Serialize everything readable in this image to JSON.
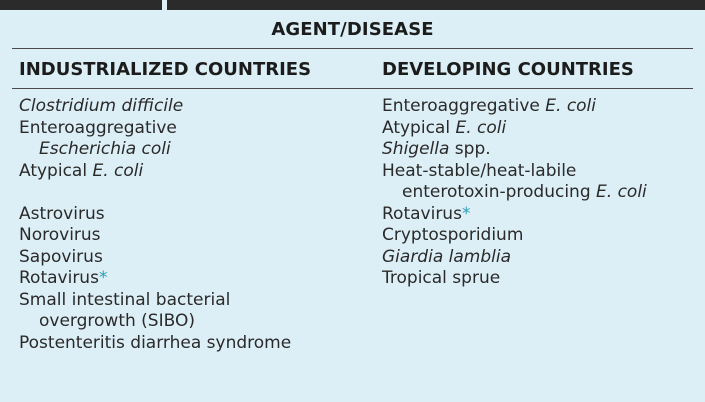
{
  "header": {
    "title": "AGENT/DISEASE"
  },
  "columns": {
    "industrialized": {
      "heading": "INDUSTRIALIZED COUNTRIES",
      "items": [
        {
          "id": "clostridium-difficile",
          "parts": [
            "Clostridium difficile"
          ]
        },
        {
          "id": "enteroaggregative-1",
          "parts": [
            "Enteroaggregative"
          ]
        },
        {
          "id": "enteroaggregative-2",
          "parts": [
            "Escherichia coli"
          ]
        },
        {
          "id": "atypical-e-coli",
          "parts": [
            "Atypical ",
            "E. coli"
          ]
        },
        {
          "id": "astrovirus",
          "parts": [
            "Astrovirus"
          ]
        },
        {
          "id": "norovirus",
          "parts": [
            "Norovirus"
          ]
        },
        {
          "id": "sapovirus",
          "parts": [
            "Sapovirus"
          ]
        },
        {
          "id": "rotavirus",
          "parts": [
            "Rotavirus",
            "*"
          ]
        },
        {
          "id": "sibo-1",
          "parts": [
            "Small intestinal bacterial"
          ]
        },
        {
          "id": "sibo-2",
          "parts": [
            "overgrowth (SIBO)"
          ]
        },
        {
          "id": "postenteritis",
          "parts": [
            "Postenteritis diarrhea syndrome"
          ]
        }
      ]
    },
    "developing": {
      "heading": "DEVELOPING COUNTRIES",
      "items": [
        {
          "id": "enteroaggregative-e-coli",
          "parts": [
            "Enteroaggregative ",
            "E. coli"
          ]
        },
        {
          "id": "atypical-e-coli",
          "parts": [
            "Atypical ",
            "E. coli"
          ]
        },
        {
          "id": "shigella",
          "parts": [
            "Shigella",
            " spp."
          ]
        },
        {
          "id": "heat-stable-1",
          "parts": [
            "Heat-stable/heat-labile"
          ]
        },
        {
          "id": "heat-stable-2",
          "parts": [
            "enterotoxin-producing ",
            "E. coli"
          ]
        },
        {
          "id": "rotavirus",
          "parts": [
            "Rotavirus",
            "*"
          ]
        },
        {
          "id": "cryptosporidium",
          "parts": [
            "Cryptosporidium"
          ]
        },
        {
          "id": "giardia-lamblia",
          "parts": [
            "Giardia lamblia"
          ]
        },
        {
          "id": "tropical-sprue",
          "parts": [
            "Tropical sprue"
          ]
        }
      ]
    }
  },
  "colors": {
    "table_background": "#dceef6",
    "asterisk": "#2a9fb8",
    "top_bar": "#2b2b2b"
  }
}
